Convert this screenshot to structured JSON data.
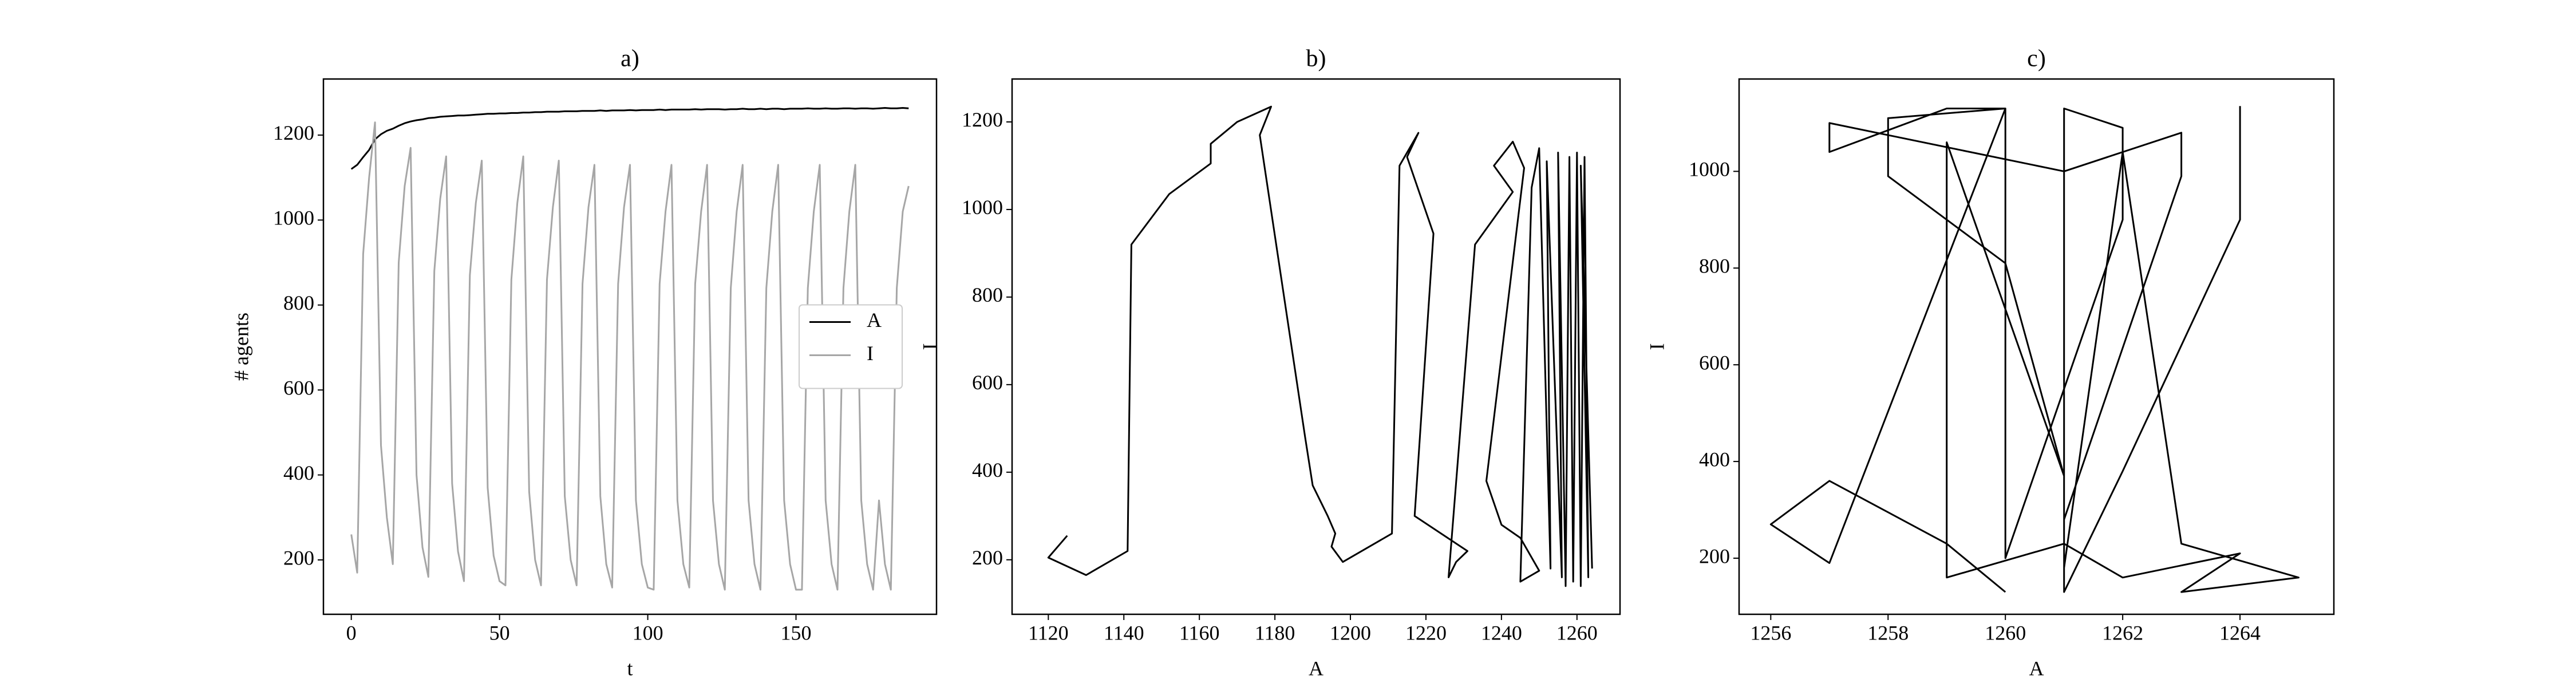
{
  "chart_data": [
    {
      "type": "line",
      "title": "a)",
      "xlabel": "t",
      "ylabel": "# agents",
      "x": [
        0,
        2,
        4,
        6,
        8,
        10,
        12,
        14,
        16,
        18,
        20,
        22,
        24,
        26,
        28,
        30,
        32,
        34,
        36,
        38,
        40,
        42,
        44,
        46,
        48,
        50,
        52,
        54,
        56,
        58,
        60,
        62,
        64,
        66,
        68,
        70,
        72,
        74,
        76,
        78,
        80,
        82,
        84,
        86,
        88,
        90,
        92,
        94,
        96,
        98,
        100,
        102,
        104,
        106,
        108,
        110,
        112,
        114,
        116,
        118,
        120,
        122,
        124,
        126,
        128,
        130,
        132,
        134,
        136,
        138,
        140,
        142,
        144,
        146,
        148,
        150,
        152,
        154,
        156,
        158,
        160,
        162,
        164,
        166,
        168,
        170,
        172,
        174,
        176,
        178,
        180,
        182,
        184,
        186,
        188
      ],
      "series": [
        {
          "name": "A",
          "color": "#000000",
          "values": [
            1120,
            1130,
            1148,
            1165,
            1190,
            1202,
            1210,
            1215,
            1222,
            1228,
            1232,
            1235,
            1237,
            1240,
            1241,
            1243,
            1244,
            1245,
            1246,
            1246,
            1247,
            1248,
            1249,
            1250,
            1250,
            1251,
            1251,
            1252,
            1252,
            1253,
            1253,
            1254,
            1254,
            1255,
            1255,
            1255,
            1256,
            1256,
            1256,
            1257,
            1257,
            1257,
            1258,
            1257,
            1258,
            1258,
            1258,
            1259,
            1258,
            1259,
            1259,
            1259,
            1260,
            1259,
            1260,
            1260,
            1260,
            1260,
            1261,
            1260,
            1261,
            1261,
            1261,
            1260,
            1261,
            1261,
            1262,
            1261,
            1261,
            1262,
            1261,
            1262,
            1262,
            1261,
            1262,
            1262,
            1262,
            1263,
            1262,
            1262,
            1263,
            1262,
            1262,
            1263,
            1263,
            1262,
            1263,
            1263,
            1262,
            1263,
            1264,
            1263,
            1263,
            1264,
            1263
          ]
        },
        {
          "name": "I",
          "color": "#a6a6a6",
          "values": [
            260,
            170,
            920,
            1100,
            1230,
            470,
            300,
            190,
            900,
            1080,
            1170,
            400,
            230,
            160,
            880,
            1050,
            1150,
            380,
            220,
            150,
            870,
            1040,
            1140,
            370,
            210,
            150,
            140,
            860,
            1040,
            1150,
            360,
            200,
            140,
            860,
            1030,
            1140,
            350,
            200,
            140,
            850,
            1030,
            1130,
            350,
            190,
            135,
            850,
            1030,
            1130,
            340,
            190,
            135,
            130,
            850,
            1020,
            1130,
            340,
            190,
            135,
            850,
            1020,
            1130,
            340,
            190,
            130,
            840,
            1020,
            1130,
            340,
            190,
            130,
            840,
            1020,
            1130,
            340,
            190,
            130,
            130,
            840,
            1020,
            1130,
            340,
            190,
            130,
            840,
            1020,
            1130,
            340,
            190,
            130,
            340,
            190,
            130,
            840,
            1020,
            1080
          ]
        }
      ],
      "xlim": [
        -9.4,
        197.4
      ],
      "ylim": [
        72,
        1332
      ],
      "xticks": [
        0,
        50,
        100,
        150
      ],
      "yticks": [
        200,
        400,
        600,
        800,
        1000,
        1200
      ],
      "legend": "center right"
    },
    {
      "type": "line",
      "title": "b)",
      "xlabel": "A",
      "ylabel": "I",
      "color": "#000000",
      "x": [
        1125,
        1120,
        1130,
        1141,
        1142,
        1152,
        1163,
        1163,
        1170,
        1179,
        1176,
        1188,
        1190,
        1194,
        1196,
        1195,
        1198,
        1211,
        1213,
        1218,
        1215,
        1222,
        1217,
        1231,
        1228,
        1226,
        1233,
        1243,
        1238,
        1243,
        1246,
        1236,
        1240,
        1245,
        1250,
        1245,
        1248,
        1250,
        1253,
        1252,
        1256,
        1255,
        1257,
        1258,
        1259,
        1260,
        1261,
        1262,
        1263,
        1261,
        1264
      ],
      "values": [
        255,
        205,
        165,
        220,
        920,
        1035,
        1105,
        1150,
        1200,
        1235,
        1170,
        480,
        370,
        300,
        260,
        230,
        195,
        260,
        1100,
        1175,
        1120,
        945,
        300,
        220,
        195,
        160,
        920,
        1040,
        1100,
        1155,
        1095,
        380,
        280,
        250,
        175,
        150,
        1050,
        1140,
        180,
        1110,
        160,
        1130,
        140,
        1120,
        150,
        1130,
        140,
        1120,
        160,
        1100,
        180
      ],
      "xlim": [
        1110.4,
        1271.4
      ],
      "ylim": [
        75.5,
        1298
      ],
      "xticks": [
        1120,
        1140,
        1160,
        1180,
        1200,
        1220,
        1240,
        1260
      ],
      "yticks": [
        200,
        400,
        600,
        800,
        1000,
        1200
      ]
    },
    {
      "type": "line",
      "title": "c)",
      "xlabel": "A",
      "ylabel": "I",
      "color": "#000000",
      "x": [
        1264,
        1264,
        1262,
        1261,
        1261,
        1262,
        1262,
        1260,
        1260,
        1258,
        1258,
        1260,
        1261,
        1259,
        1259,
        1261,
        1262,
        1264,
        1263,
        1265,
        1263,
        1262,
        1261,
        1261,
        1263,
        1263,
        1261,
        1257,
        1257,
        1259,
        1260,
        1257,
        1256,
        1257,
        1259,
        1260
      ],
      "values": [
        1135,
        900,
        380,
        130,
        1130,
        1090,
        900,
        200,
        1130,
        1110,
        990,
        810,
        370,
        1060,
        160,
        230,
        160,
        210,
        130,
        160,
        230,
        1040,
        180,
        280,
        990,
        1080,
        1000,
        1100,
        1040,
        1130,
        1130,
        190,
        270,
        360,
        230,
        130
      ],
      "xlim": [
        1255.46,
        1265.6
      ],
      "ylim": [
        84,
        1191
      ],
      "xticks": [
        1256,
        1258,
        1260,
        1262,
        1264
      ],
      "yticks": [
        200,
        400,
        600,
        800,
        1000
      ]
    }
  ]
}
